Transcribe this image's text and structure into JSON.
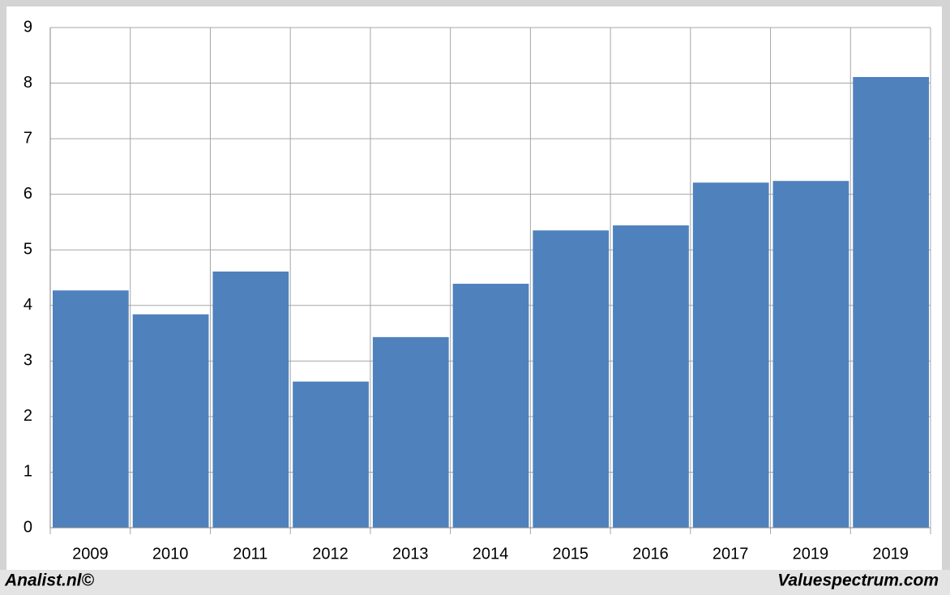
{
  "chart_data": {
    "type": "bar",
    "categories": [
      "2009",
      "2010",
      "2011",
      "2012",
      "2013",
      "2014",
      "2015",
      "2016",
      "2017",
      "2019",
      "2019"
    ],
    "values": [
      4.27,
      3.84,
      4.61,
      2.63,
      3.43,
      4.39,
      5.35,
      5.44,
      6.21,
      6.24,
      8.11
    ],
    "color": "#4f81bd",
    "ylim": [
      0,
      9
    ],
    "yticks": [
      0,
      1,
      2,
      3,
      4,
      5,
      6,
      7,
      8,
      9
    ],
    "grid": true
  },
  "footer": {
    "left": "Analist.nl©",
    "right": "Valuespectrum.com"
  }
}
